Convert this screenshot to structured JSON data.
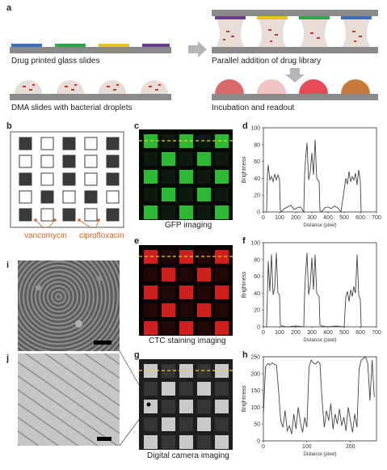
{
  "panels": {
    "a": {
      "label": "a",
      "captions": {
        "step1": "Drug printed glass slides",
        "step2": "DMA slides with bacterial droplets",
        "step3": "Parallel addition of drug library",
        "step4": "Incubation and readout"
      },
      "colors": {
        "blue": "#3a6fbf",
        "green": "#2aa84a",
        "yellow": "#e8c21e",
        "purple": "#6a3b8e",
        "slide": "#8a8a8a",
        "droplet": "#e8dcd6",
        "red1": "#d96a6a",
        "red2": "#f1c4c4",
        "red3": "#e84a58",
        "orange": "#c77a3a"
      }
    },
    "b": {
      "label": "b",
      "grid": [
        [
          1,
          0,
          1,
          0,
          1
        ],
        [
          0,
          0,
          1,
          0,
          1
        ],
        [
          1,
          0,
          1,
          0,
          1
        ],
        [
          0,
          1,
          0,
          1,
          0
        ],
        [
          1,
          0,
          1,
          0,
          1
        ]
      ],
      "labels": {
        "left": "vancomycin",
        "right": "ciprofloxacin"
      },
      "label_color": "#d2621e"
    },
    "c": {
      "label": "c",
      "caption": "GFP imaging",
      "grid": [
        [
          1,
          0,
          1,
          0,
          1
        ],
        [
          0,
          1,
          0,
          1,
          0
        ],
        [
          1,
          0,
          1,
          0,
          1
        ],
        [
          0,
          1,
          0,
          1,
          0
        ],
        [
          1,
          0,
          1,
          0,
          1
        ]
      ],
      "color": "#32c83a"
    },
    "e": {
      "label": "e",
      "caption": "CTC staining imaging",
      "grid": [
        [
          1,
          0,
          1,
          0,
          1
        ],
        [
          0,
          1,
          0,
          1,
          0
        ],
        [
          1,
          0,
          1,
          0,
          1
        ],
        [
          0,
          1,
          0,
          1,
          0
        ],
        [
          1,
          0,
          1,
          0,
          1
        ]
      ],
      "color": "#e02222"
    },
    "g": {
      "label": "g",
      "caption": "Digital camera imaging",
      "grid": [
        [
          1,
          0,
          1,
          0,
          1
        ],
        [
          0,
          1,
          0,
          1,
          0
        ],
        [
          1,
          0,
          1,
          0,
          1
        ],
        [
          0,
          1,
          0,
          1,
          0
        ],
        [
          1,
          0,
          1,
          0,
          1
        ]
      ],
      "color": "#d8d8d8"
    },
    "i": {
      "label": "i"
    },
    "j": {
      "label": "j"
    }
  },
  "chart_data": [
    {
      "id": "d",
      "type": "line",
      "ylabel": "Brightness",
      "xlabel": "Distance (pixel)",
      "xlim": [
        0,
        700
      ],
      "ylim": [
        0,
        100
      ],
      "xticks": [
        "0",
        "100",
        "200",
        "300",
        "400",
        "500",
        "600",
        "700"
      ],
      "yticks": [
        "0",
        "20",
        "40",
        "60",
        "80",
        "100"
      ],
      "x": [
        0,
        20,
        25,
        30,
        40,
        50,
        60,
        70,
        80,
        90,
        100,
        105,
        110,
        130,
        150,
        170,
        190,
        210,
        230,
        250,
        255,
        260,
        270,
        280,
        290,
        300,
        310,
        320,
        330,
        345,
        350,
        360,
        380,
        400,
        420,
        440,
        460,
        480,
        510,
        520,
        530,
        540,
        550,
        560,
        570,
        580,
        590,
        600,
        605,
        610
      ],
      "y": [
        0,
        0,
        44,
        56,
        38,
        42,
        36,
        45,
        38,
        44,
        38,
        2,
        0,
        4,
        6,
        8,
        3,
        5,
        6,
        0,
        44,
        60,
        82,
        38,
        48,
        70,
        44,
        86,
        40,
        36,
        2,
        0,
        5,
        6,
        4,
        7,
        5,
        0,
        40,
        33,
        48,
        36,
        42,
        38,
        46,
        32,
        50,
        36,
        0,
        0
      ]
    },
    {
      "id": "f",
      "type": "line",
      "ylabel": "Brightness",
      "xlabel": "Distance (pixel)",
      "xlim": [
        0,
        700
      ],
      "ylim": [
        0,
        100
      ],
      "xticks": [
        "0",
        "100",
        "200",
        "300",
        "400",
        "500",
        "600",
        "700"
      ],
      "yticks": [
        "0",
        "20",
        "40",
        "60",
        "80",
        "100"
      ],
      "x": [
        0,
        20,
        25,
        30,
        40,
        50,
        60,
        70,
        80,
        90,
        100,
        105,
        110,
        150,
        200,
        250,
        255,
        260,
        270,
        280,
        290,
        300,
        310,
        320,
        330,
        345,
        350,
        360,
        400,
        450,
        500,
        510,
        520,
        530,
        540,
        550,
        560,
        570,
        580,
        590,
        600,
        605,
        610
      ],
      "y": [
        0,
        0,
        40,
        78,
        42,
        86,
        38,
        46,
        88,
        40,
        38,
        2,
        1,
        0,
        1,
        0,
        40,
        60,
        88,
        38,
        50,
        82,
        44,
        86,
        40,
        36,
        2,
        1,
        0,
        1,
        0,
        36,
        42,
        30,
        44,
        36,
        48,
        40,
        86,
        38,
        32,
        0,
        0
      ]
    },
    {
      "id": "h",
      "type": "line",
      "ylabel": "Brightness",
      "xlabel": "Distance (pixel)",
      "xlim": [
        0,
        260
      ],
      "ylim": [
        0,
        250
      ],
      "xticks": [
        "0",
        "100",
        "200"
      ],
      "yticks": [
        "0",
        "50",
        "100",
        "150",
        "200",
        "250"
      ],
      "x": [
        0,
        5,
        10,
        15,
        20,
        25,
        30,
        35,
        40,
        45,
        50,
        55,
        60,
        65,
        70,
        75,
        80,
        85,
        90,
        95,
        100,
        105,
        110,
        115,
        120,
        125,
        130,
        135,
        140,
        145,
        150,
        155,
        160,
        165,
        170,
        175,
        180,
        185,
        190,
        195,
        200,
        205,
        210,
        215,
        220,
        225,
        230,
        235,
        240,
        245,
        250,
        255
      ],
      "y": [
        80,
        220,
        230,
        225,
        232,
        228,
        225,
        150,
        60,
        40,
        90,
        30,
        45,
        20,
        80,
        35,
        100,
        55,
        25,
        70,
        40,
        220,
        240,
        232,
        228,
        236,
        230,
        120,
        40,
        90,
        60,
        110,
        35,
        80,
        50,
        95,
        45,
        70,
        30,
        100,
        60,
        25,
        80,
        40,
        215,
        240,
        245,
        250,
        230,
        120,
        240,
        130
      ]
    }
  ]
}
